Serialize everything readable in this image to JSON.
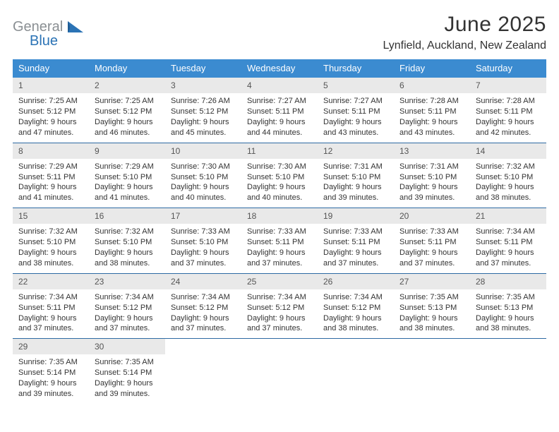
{
  "brand": {
    "line1": "General",
    "line2": "Blue",
    "gray": "#8a8f93",
    "blue": "#2b73b5"
  },
  "title": {
    "month": "June 2025",
    "location": "Lynfield, Auckland, New Zealand"
  },
  "colors": {
    "header_blue": "#3b8bd0",
    "divider": "#2d6aa3",
    "daynum_bg": "#e9e9e9"
  },
  "weekdays": [
    "Sunday",
    "Monday",
    "Tuesday",
    "Wednesday",
    "Thursday",
    "Friday",
    "Saturday"
  ],
  "start_offset": 0,
  "days": [
    {
      "n": 1,
      "sunrise": "7:25 AM",
      "sunset": "5:12 PM",
      "daylight": "9 hours and 47 minutes."
    },
    {
      "n": 2,
      "sunrise": "7:25 AM",
      "sunset": "5:12 PM",
      "daylight": "9 hours and 46 minutes."
    },
    {
      "n": 3,
      "sunrise": "7:26 AM",
      "sunset": "5:12 PM",
      "daylight": "9 hours and 45 minutes."
    },
    {
      "n": 4,
      "sunrise": "7:27 AM",
      "sunset": "5:11 PM",
      "daylight": "9 hours and 44 minutes."
    },
    {
      "n": 5,
      "sunrise": "7:27 AM",
      "sunset": "5:11 PM",
      "daylight": "9 hours and 43 minutes."
    },
    {
      "n": 6,
      "sunrise": "7:28 AM",
      "sunset": "5:11 PM",
      "daylight": "9 hours and 43 minutes."
    },
    {
      "n": 7,
      "sunrise": "7:28 AM",
      "sunset": "5:11 PM",
      "daylight": "9 hours and 42 minutes."
    },
    {
      "n": 8,
      "sunrise": "7:29 AM",
      "sunset": "5:11 PM",
      "daylight": "9 hours and 41 minutes."
    },
    {
      "n": 9,
      "sunrise": "7:29 AM",
      "sunset": "5:10 PM",
      "daylight": "9 hours and 41 minutes."
    },
    {
      "n": 10,
      "sunrise": "7:30 AM",
      "sunset": "5:10 PM",
      "daylight": "9 hours and 40 minutes."
    },
    {
      "n": 11,
      "sunrise": "7:30 AM",
      "sunset": "5:10 PM",
      "daylight": "9 hours and 40 minutes."
    },
    {
      "n": 12,
      "sunrise": "7:31 AM",
      "sunset": "5:10 PM",
      "daylight": "9 hours and 39 minutes."
    },
    {
      "n": 13,
      "sunrise": "7:31 AM",
      "sunset": "5:10 PM",
      "daylight": "9 hours and 39 minutes."
    },
    {
      "n": 14,
      "sunrise": "7:32 AM",
      "sunset": "5:10 PM",
      "daylight": "9 hours and 38 minutes."
    },
    {
      "n": 15,
      "sunrise": "7:32 AM",
      "sunset": "5:10 PM",
      "daylight": "9 hours and 38 minutes."
    },
    {
      "n": 16,
      "sunrise": "7:32 AM",
      "sunset": "5:10 PM",
      "daylight": "9 hours and 38 minutes."
    },
    {
      "n": 17,
      "sunrise": "7:33 AM",
      "sunset": "5:10 PM",
      "daylight": "9 hours and 37 minutes."
    },
    {
      "n": 18,
      "sunrise": "7:33 AM",
      "sunset": "5:11 PM",
      "daylight": "9 hours and 37 minutes."
    },
    {
      "n": 19,
      "sunrise": "7:33 AM",
      "sunset": "5:11 PM",
      "daylight": "9 hours and 37 minutes."
    },
    {
      "n": 20,
      "sunrise": "7:33 AM",
      "sunset": "5:11 PM",
      "daylight": "9 hours and 37 minutes."
    },
    {
      "n": 21,
      "sunrise": "7:34 AM",
      "sunset": "5:11 PM",
      "daylight": "9 hours and 37 minutes."
    },
    {
      "n": 22,
      "sunrise": "7:34 AM",
      "sunset": "5:11 PM",
      "daylight": "9 hours and 37 minutes."
    },
    {
      "n": 23,
      "sunrise": "7:34 AM",
      "sunset": "5:12 PM",
      "daylight": "9 hours and 37 minutes."
    },
    {
      "n": 24,
      "sunrise": "7:34 AM",
      "sunset": "5:12 PM",
      "daylight": "9 hours and 37 minutes."
    },
    {
      "n": 25,
      "sunrise": "7:34 AM",
      "sunset": "5:12 PM",
      "daylight": "9 hours and 37 minutes."
    },
    {
      "n": 26,
      "sunrise": "7:34 AM",
      "sunset": "5:12 PM",
      "daylight": "9 hours and 38 minutes."
    },
    {
      "n": 27,
      "sunrise": "7:35 AM",
      "sunset": "5:13 PM",
      "daylight": "9 hours and 38 minutes."
    },
    {
      "n": 28,
      "sunrise": "7:35 AM",
      "sunset": "5:13 PM",
      "daylight": "9 hours and 38 minutes."
    },
    {
      "n": 29,
      "sunrise": "7:35 AM",
      "sunset": "5:14 PM",
      "daylight": "9 hours and 39 minutes."
    },
    {
      "n": 30,
      "sunrise": "7:35 AM",
      "sunset": "5:14 PM",
      "daylight": "9 hours and 39 minutes."
    }
  ],
  "labels": {
    "sunrise": "Sunrise:",
    "sunset": "Sunset:",
    "daylight": "Daylight:"
  }
}
